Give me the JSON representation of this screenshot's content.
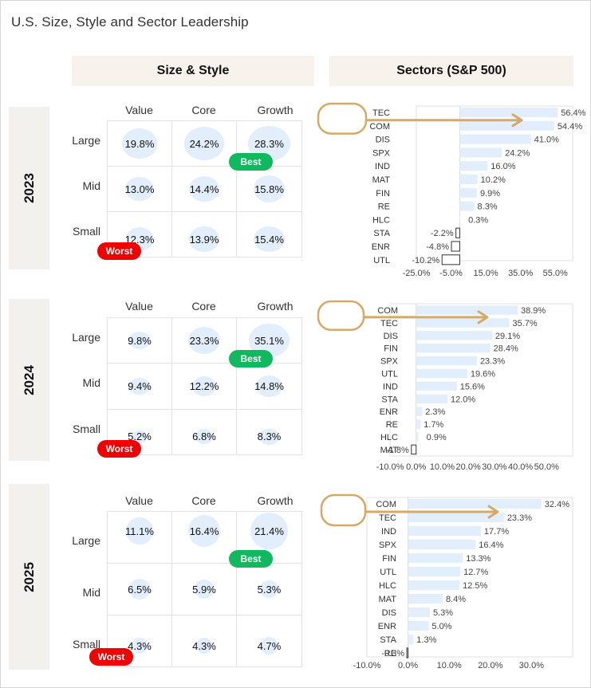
{
  "title": "U.S. Size, Style and Sector Leadership",
  "headers": {
    "size_style": "Size & Style",
    "sectors": "Sectors (S&P 500)"
  },
  "columns": [
    "Value",
    "Core",
    "Growth"
  ],
  "rows": [
    "Large",
    "Mid",
    "Small"
  ],
  "badges": {
    "best": "Best",
    "worst": "Worst"
  },
  "colors": {
    "bar": "#e3eefc",
    "best": "#10b95e",
    "worst": "#f00000",
    "highlight": "#d4aa66",
    "header_bg": "#f7f3ec"
  },
  "years": [
    {
      "year": "2023",
      "grid": [
        [
          "19.8%",
          "24.2%",
          "28.3%"
        ],
        [
          "13.0%",
          "14.4%",
          "15.8%"
        ],
        [
          "12.3%",
          "13.9%",
          "15.4%"
        ]
      ],
      "grid_values": [
        [
          19.8,
          24.2,
          28.3
        ],
        [
          13.0,
          14.4,
          15.8
        ],
        [
          12.3,
          13.9,
          15.4
        ]
      ],
      "best": [
        0,
        2
      ],
      "worst": [
        2,
        0
      ]
    },
    {
      "year": "2024",
      "grid": [
        [
          "9.8%",
          "23.3%",
          "35.1%"
        ],
        [
          "9.4%",
          "12.2%",
          "14.8%"
        ],
        [
          "5.2%",
          "6.8%",
          "8.3%"
        ]
      ],
      "grid_values": [
        [
          9.8,
          23.3,
          35.1
        ],
        [
          9.4,
          12.2,
          14.8
        ],
        [
          5.2,
          6.8,
          8.3
        ]
      ],
      "best": [
        0,
        2
      ],
      "worst": [
        2,
        0
      ]
    },
    {
      "year": "2025",
      "grid": [
        [
          "11.1%",
          "16.4%",
          "21.4%"
        ],
        [
          "6.5%",
          "5.9%",
          "5.3%"
        ],
        [
          "4.3%",
          "4.3%",
          "4.7%"
        ]
      ],
      "grid_values": [
        [
          11.1,
          16.4,
          21.4
        ],
        [
          6.5,
          5.9,
          5.3
        ],
        [
          4.3,
          4.3,
          4.7
        ]
      ],
      "best": [
        0,
        2
      ],
      "worst": [
        2,
        0
      ]
    }
  ],
  "chart_data": [
    {
      "type": "bar",
      "orientation": "horizontal",
      "title": "Sectors (S&P 500) 2023",
      "categories": [
        "TEC",
        "COM",
        "DIS",
        "SPX",
        "IND",
        "MAT",
        "FIN",
        "RE",
        "HLC",
        "STA",
        "ENR",
        "UTL"
      ],
      "values": [
        56.4,
        54.4,
        41.0,
        24.2,
        16.0,
        10.2,
        9.9,
        8.3,
        0.3,
        -2.2,
        -4.8,
        -10.2
      ],
      "xticks": [
        "-25.0%",
        "-5.0%",
        "15.0%",
        "35.0%",
        "55.0%"
      ],
      "xtick_values": [
        -25,
        -5,
        15,
        35,
        55
      ],
      "xlim": [
        -25,
        65
      ],
      "highlighted": [
        "TEC",
        "COM"
      ],
      "xlabel": "",
      "ylabel": ""
    },
    {
      "type": "bar",
      "orientation": "horizontal",
      "title": "Sectors (S&P 500) 2024",
      "categories": [
        "COM",
        "TEC",
        "DIS",
        "FIN",
        "SPX",
        "UTL",
        "IND",
        "STA",
        "ENR",
        "RE",
        "HLC",
        "MAT"
      ],
      "values": [
        38.9,
        35.7,
        29.1,
        28.4,
        23.3,
        19.6,
        15.6,
        12.0,
        2.3,
        1.7,
        0.9,
        -1.8
      ],
      "xticks": [
        "-10.0%",
        "0.0%",
        "10.0%",
        "20.0%",
        "30.0%",
        "40.0%",
        "50.0%"
      ],
      "xtick_values": [
        -10,
        0,
        10,
        20,
        30,
        40,
        50
      ],
      "xlim": [
        -10,
        60
      ],
      "highlighted": [
        "COM",
        "TEC"
      ],
      "xlabel": "",
      "ylabel": ""
    },
    {
      "type": "bar",
      "orientation": "horizontal",
      "title": "Sectors (S&P 500) 2025",
      "categories": [
        "COM",
        "TEC",
        "IND",
        "SPX",
        "FIN",
        "UTL",
        "HLC",
        "MAT",
        "DIS",
        "ENR",
        "STA",
        "RE"
      ],
      "values": [
        32.4,
        23.3,
        17.7,
        16.4,
        13.3,
        12.7,
        12.5,
        8.4,
        5.3,
        5.0,
        1.3,
        -0.3
      ],
      "xticks": [
        "-10.0%",
        "0.0%",
        "10.0%",
        "20.0%",
        "30.0%"
      ],
      "xtick_values": [
        -10,
        0,
        10,
        20,
        30
      ],
      "xlim": [
        -10,
        40
      ],
      "highlighted": [
        "COM",
        "TEC"
      ],
      "xlabel": "",
      "ylabel": ""
    }
  ]
}
